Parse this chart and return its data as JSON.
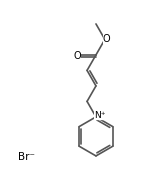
{
  "background_color": "#ffffff",
  "line_color": "#555555",
  "line_width": 1.2,
  "text_color": "#000000",
  "br_label": "Br⁻",
  "n_plus_label": "N⁺",
  "o_label": "O",
  "figsize": [
    1.58,
    1.88
  ],
  "dpi": 100,
  "xlim": [
    0,
    9
  ],
  "ylim": [
    0,
    11
  ]
}
